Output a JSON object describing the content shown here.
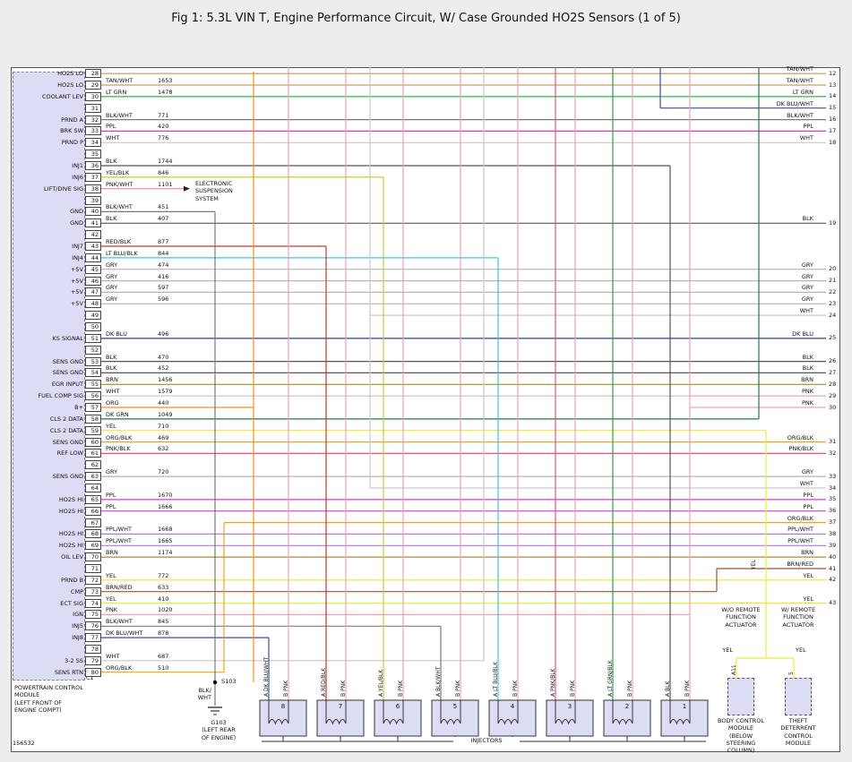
{
  "title": "Fig 1: 5.3L VIN T, Engine Performance Circuit, W/ Case Grounded HO2S Sensors (1 of 5)",
  "footnote": "156532",
  "colors": {
    "TAN/WHT": "#c8a165",
    "LT GRN": "#36b34a",
    "DK BLU/WHT": "#3a4f9c",
    "BLK/WHT": "#7a7a7a",
    "PPL": "#d23bd2",
    "WHT": "#c9c9c9",
    "BLK": "#565656",
    "PNK": "#f0a0b6",
    "YEL/BLK": "#c9cc2e",
    "PNK/WHT": "#f27fae",
    "RED/BLK": "#c23b2e",
    "LT BLU/BLK": "#35c8e8",
    "GRY": "#b5b5b5",
    "DK BLU": "#2c3e9e",
    "BRN": "#ad8836",
    "ORG": "#ef8f1f",
    "DK GRN": "#207a3c",
    "YEL": "#ece93b",
    "ORG/BLK": "#e8a81e",
    "PNK/BLK": "#e54f86",
    "BRN/RED": "#a0522d",
    "PPL/WHT": "#b678d8",
    "LT GRN/BLK": "#2f9e44"
  },
  "pcm": {
    "connector": "C1",
    "caption": [
      "POWERTRAIN CONTROL",
      "MODULE",
      "(LEFT FRONT OF",
      "ENGINE COMPT)"
    ],
    "rows": [
      {
        "pin": 28,
        "label": "HO2S LO",
        "wire": "",
        "circuit": ""
      },
      {
        "pin": 29,
        "label": "HO2S LO",
        "wire": "TAN/WHT",
        "circuit": "1653"
      },
      {
        "pin": 30,
        "label": "COOLANT LEV",
        "wire": "LT GRN",
        "circuit": "1478"
      },
      {
        "pin": 31,
        "label": "",
        "wire": "",
        "circuit": ""
      },
      {
        "pin": 32,
        "label": "PRND A",
        "wire": "BLK/WHT",
        "circuit": "771"
      },
      {
        "pin": 33,
        "label": "BRK SW",
        "wire": "PPL",
        "circuit": "420"
      },
      {
        "pin": 34,
        "label": "PRND P",
        "wire": "WHT",
        "circuit": "776"
      },
      {
        "pin": 35,
        "label": "",
        "wire": "",
        "circuit": ""
      },
      {
        "pin": 36,
        "label": "INJ1",
        "wire": "BLK",
        "circuit": "1744"
      },
      {
        "pin": 37,
        "label": "INJ6",
        "wire": "YEL/BLK",
        "circuit": "846"
      },
      {
        "pin": 38,
        "label": "LIFT/DIVE SIG",
        "wire": "PNK/WHT",
        "circuit": "1101"
      },
      {
        "pin": 39,
        "label": "",
        "wire": "",
        "circuit": ""
      },
      {
        "pin": 40,
        "label": "GND",
        "wire": "BLK/WHT",
        "circuit": "451"
      },
      {
        "pin": 41,
        "label": "GND",
        "wire": "BLK",
        "circuit": "407"
      },
      {
        "pin": 42,
        "label": "",
        "wire": "",
        "circuit": ""
      },
      {
        "pin": 43,
        "label": "INJ7",
        "wire": "RED/BLK",
        "circuit": "877"
      },
      {
        "pin": 44,
        "label": "INJ4",
        "wire": "LT BLU/BLK",
        "circuit": "844"
      },
      {
        "pin": 45,
        "label": "+5V",
        "wire": "GRY",
        "circuit": "474"
      },
      {
        "pin": 46,
        "label": "+5V",
        "wire": "GRY",
        "circuit": "416"
      },
      {
        "pin": 47,
        "label": "+5V",
        "wire": "GRY",
        "circuit": "597"
      },
      {
        "pin": 48,
        "label": "+5V",
        "wire": "GRY",
        "circuit": "596"
      },
      {
        "pin": 49,
        "label": "",
        "wire": "",
        "circuit": ""
      },
      {
        "pin": 50,
        "label": "",
        "wire": "",
        "circuit": ""
      },
      {
        "pin": 51,
        "label": "KS SIGNAL",
        "wire": "DK BLU",
        "circuit": "496"
      },
      {
        "pin": 52,
        "label": "",
        "wire": "",
        "circuit": ""
      },
      {
        "pin": 53,
        "label": "SENS GND",
        "wire": "BLK",
        "circuit": "470"
      },
      {
        "pin": 54,
        "label": "SENS GND",
        "wire": "BLK",
        "circuit": "452"
      },
      {
        "pin": 55,
        "label": "EGR INPUT",
        "wire": "BRN",
        "circuit": "1456"
      },
      {
        "pin": 56,
        "label": "FUEL COMP SIG",
        "wire": "WHT",
        "circuit": "1579"
      },
      {
        "pin": 57,
        "label": "B+",
        "wire": "ORG",
        "circuit": "440"
      },
      {
        "pin": 58,
        "label": "CLS 2 DATA",
        "wire": "DK GRN",
        "circuit": "1049"
      },
      {
        "pin": 59,
        "label": "CLS 2 DATA",
        "wire": "YEL",
        "circuit": "710"
      },
      {
        "pin": 60,
        "label": "SENS GND",
        "wire": "ORG/BLK",
        "circuit": "469"
      },
      {
        "pin": 61,
        "label": "REF LOW",
        "wire": "PNK/BLK",
        "circuit": "632"
      },
      {
        "pin": 62,
        "label": "",
        "wire": "",
        "circuit": ""
      },
      {
        "pin": 63,
        "label": "SENS GND",
        "wire": "GRY",
        "circuit": "720"
      },
      {
        "pin": 64,
        "label": "",
        "wire": "",
        "circuit": ""
      },
      {
        "pin": 65,
        "label": "HO2S HI",
        "wire": "PPL",
        "circuit": "1670"
      },
      {
        "pin": 66,
        "label": "HO2S HI",
        "wire": "PPL",
        "circuit": "1666"
      },
      {
        "pin": 67,
        "label": "",
        "wire": "",
        "circuit": ""
      },
      {
        "pin": 68,
        "label": "HO2S HI",
        "wire": "PPL/WHT",
        "circuit": "1668"
      },
      {
        "pin": 69,
        "label": "HO2S HI",
        "wire": "PPL/WHT",
        "circuit": "1665"
      },
      {
        "pin": 70,
        "label": "OIL LEV",
        "wire": "BRN",
        "circuit": "1174"
      },
      {
        "pin": 71,
        "label": "",
        "wire": "",
        "circuit": ""
      },
      {
        "pin": 72,
        "label": "PRND B",
        "wire": "YEL",
        "circuit": "772"
      },
      {
        "pin": 73,
        "label": "CMP",
        "wire": "BRN/RED",
        "circuit": "633"
      },
      {
        "pin": 74,
        "label": "ECT SIG",
        "wire": "YEL",
        "circuit": "410"
      },
      {
        "pin": 75,
        "label": "IGN",
        "wire": "PNK",
        "circuit": "1020"
      },
      {
        "pin": 76,
        "label": "INJ5",
        "wire": "BLK/WHT",
        "circuit": "845"
      },
      {
        "pin": 77,
        "label": "INJ8",
        "wire": "DK BLU/WHT",
        "circuit": "878"
      },
      {
        "pin": 78,
        "label": "",
        "wire": "",
        "circuit": ""
      },
      {
        "pin": 79,
        "label": "3-2 SS",
        "wire": "WHT",
        "circuit": "687"
      },
      {
        "pin": 80,
        "label": "SENS RTN",
        "wire": "ORG/BLK",
        "circuit": "510"
      }
    ]
  },
  "right_labels": [
    {
      "wire": "TAN/WHT",
      "pin": "12",
      "row": 28
    },
    {
      "wire": "TAN/WHT",
      "pin": "13",
      "row": 29
    },
    {
      "wire": "LT GRN",
      "pin": "14",
      "row": 30
    },
    {
      "wire": "DK BLU/WHT",
      "pin": "15",
      "row": 31
    },
    {
      "wire": "BLK/WHT",
      "pin": "16",
      "row": 32
    },
    {
      "wire": "PPL",
      "pin": "17",
      "row": 33
    },
    {
      "wire": "WHT",
      "pin": "18",
      "row": 34
    },
    {
      "wire": "BLK",
      "pin": "19",
      "row": 41
    },
    {
      "wire": "GRY",
      "pin": "20",
      "row": 45
    },
    {
      "wire": "GRY",
      "pin": "21",
      "row": 46
    },
    {
      "wire": "GRY",
      "pin": "22",
      "row": 47
    },
    {
      "wire": "GRY",
      "pin": "23",
      "row": 48
    },
    {
      "wire": "WHT",
      "pin": "24",
      "row": 49
    },
    {
      "wire": "DK BLU",
      "pin": "25",
      "row": 51
    },
    {
      "wire": "BLK",
      "pin": "26",
      "row": 53
    },
    {
      "wire": "BLK",
      "pin": "27",
      "row": 54
    },
    {
      "wire": "BRN",
      "pin": "28",
      "row": 55
    },
    {
      "wire": "PNK",
      "pin": "29",
      "row": 56
    },
    {
      "wire": "PNK",
      "pin": "30",
      "row": 57
    },
    {
      "wire": "ORG/BLK",
      "pin": "31",
      "row": 60
    },
    {
      "wire": "PNK/BLK",
      "pin": "32",
      "row": 61
    },
    {
      "wire": "GRY",
      "pin": "33",
      "row": 63
    },
    {
      "wire": "WHT",
      "pin": "34",
      "row": 64
    },
    {
      "wire": "PPL",
      "pin": "35",
      "row": 65
    },
    {
      "wire": "PPL",
      "pin": "36",
      "row": 66
    },
    {
      "wire": "ORG/BLK",
      "pin": "37",
      "row": 67
    },
    {
      "wire": "PPL/WHT",
      "pin": "38",
      "row": 68
    },
    {
      "wire": "PPL/WHT",
      "pin": "39",
      "row": 69
    },
    {
      "wire": "BRN",
      "pin": "40",
      "row": 70
    },
    {
      "wire": "BRN/RED",
      "pin": "41",
      "row": 71
    },
    {
      "wire": "YEL",
      "pin": "42",
      "row": 72
    },
    {
      "wire": "YEL",
      "pin": "43",
      "row": 74
    }
  ],
  "ess": {
    "lines": [
      "ELECTRONIC",
      "SUSPENSION",
      "SYSTEM"
    ]
  },
  "ground": {
    "splice": "S103",
    "wire": [
      "BLK/",
      "WHT"
    ],
    "name": [
      "G103",
      "(LEFT REAR",
      "OF ENGINE)"
    ]
  },
  "injectors": {
    "label": "INJECTORS",
    "items": [
      {
        "num": "8",
        "a": "A DK BLU/WHT",
        "b": "B PNK"
      },
      {
        "num": "7",
        "a": "A RED/BLK",
        "b": "B PNK"
      },
      {
        "num": "6",
        "a": "A YEL/BLK",
        "b": "B PNK"
      },
      {
        "num": "5",
        "a": "A BLK/WHT",
        "b": "B PNK"
      },
      {
        "num": "4",
        "a": "A LT BLU/BLK",
        "b": "B PNK"
      },
      {
        "num": "3",
        "a": "A PNK/BLK",
        "b": "B PNK"
      },
      {
        "num": "2",
        "a": "A LT GRN/BLK",
        "b": "B PNK"
      },
      {
        "num": "1",
        "a": "A BLK",
        "b": "B PNK"
      }
    ]
  },
  "modules": {
    "left_header": [
      "W/O REMOTE",
      "FUNCTION",
      "ACTUATOR"
    ],
    "right_header": [
      "W/ REMOTE",
      "FUNCTION",
      "ACTUATOR"
    ],
    "left_caption": [
      "BODY CONTROL",
      "MODULE",
      "(BELOW",
      "STEERING",
      "COLUMN)"
    ],
    "right_caption": [
      "THEFT",
      "DETERRENT",
      "CONTROL",
      "MODULE"
    ],
    "left_wire": "YEL",
    "right_wire": "YEL",
    "left_pin": "A11",
    "right_pin": "5",
    "riser": "YEL"
  }
}
